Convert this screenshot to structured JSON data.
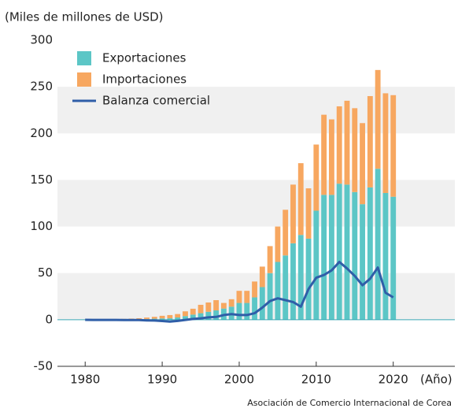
{
  "chart_data": {
    "type": "bar",
    "stacked": true,
    "y_axis_label": "(Miles de millones de USD)",
    "x_axis_label": "(Año)",
    "source": "Asociación de Comercio Internacional de Corea",
    "x": [
      1980,
      1981,
      1982,
      1983,
      1984,
      1985,
      1986,
      1987,
      1988,
      1989,
      1990,
      1991,
      1992,
      1993,
      1994,
      1995,
      1996,
      1997,
      1998,
      1999,
      2000,
      2001,
      2002,
      2003,
      2004,
      2005,
      2006,
      2007,
      2008,
      2009,
      2010,
      2011,
      2012,
      2013,
      2014,
      2015,
      2016,
      2017,
      2018,
      2019,
      2020
    ],
    "series": [
      {
        "name": "Exportaciones",
        "color": "#5cc6c6",
        "kind": "bar",
        "values": [
          0.1,
          0.1,
          0.1,
          0.1,
          0.2,
          0.3,
          0.4,
          0.6,
          0.8,
          1.1,
          1.4,
          1.5,
          2.4,
          3.9,
          5.5,
          7,
          8.5,
          10,
          12,
          14,
          18,
          18,
          24,
          35,
          50,
          62,
          69,
          82,
          91,
          87,
          117,
          134,
          134,
          146,
          145,
          137,
          124,
          142,
          162,
          136,
          132
        ]
      },
      {
        "name": "Importaciones",
        "color": "#f7a760",
        "kind": "bar",
        "values": [
          0.2,
          0.3,
          0.3,
          0.3,
          0.4,
          0.6,
          0.8,
          1,
          1.5,
          2,
          2.8,
          3.5,
          3.7,
          5.1,
          6.3,
          9,
          10,
          11,
          6,
          8,
          13,
          13,
          17,
          22,
          29,
          38,
          49,
          63,
          77,
          54,
          71,
          86,
          81,
          83,
          90,
          90,
          87,
          98,
          106,
          107,
          109
        ]
      },
      {
        "name": "Balanza comercial",
        "color": "#2f5ea8",
        "kind": "line",
        "values": [
          -0.1,
          -0.2,
          -0.2,
          -0.2,
          -0.2,
          -0.3,
          -0.4,
          -0.4,
          -0.7,
          -0.9,
          -1.4,
          -2,
          -1.3,
          -0.2,
          0.8,
          1.5,
          2.5,
          3,
          5,
          6,
          5,
          5,
          7,
          13,
          20,
          23,
          21,
          19,
          14,
          33,
          45,
          48,
          53,
          62,
          55,
          47,
          37,
          44,
          56,
          29,
          24
        ]
      }
    ],
    "xlim": [
      1976.4,
      2028
    ],
    "xticks": [
      1980,
      1990,
      2000,
      2010,
      2020
    ],
    "ylim": [
      -50,
      300
    ],
    "yticks": [
      -50,
      0,
      50,
      100,
      150,
      200,
      250,
      300
    ],
    "grid": true,
    "legend": "upper left"
  }
}
